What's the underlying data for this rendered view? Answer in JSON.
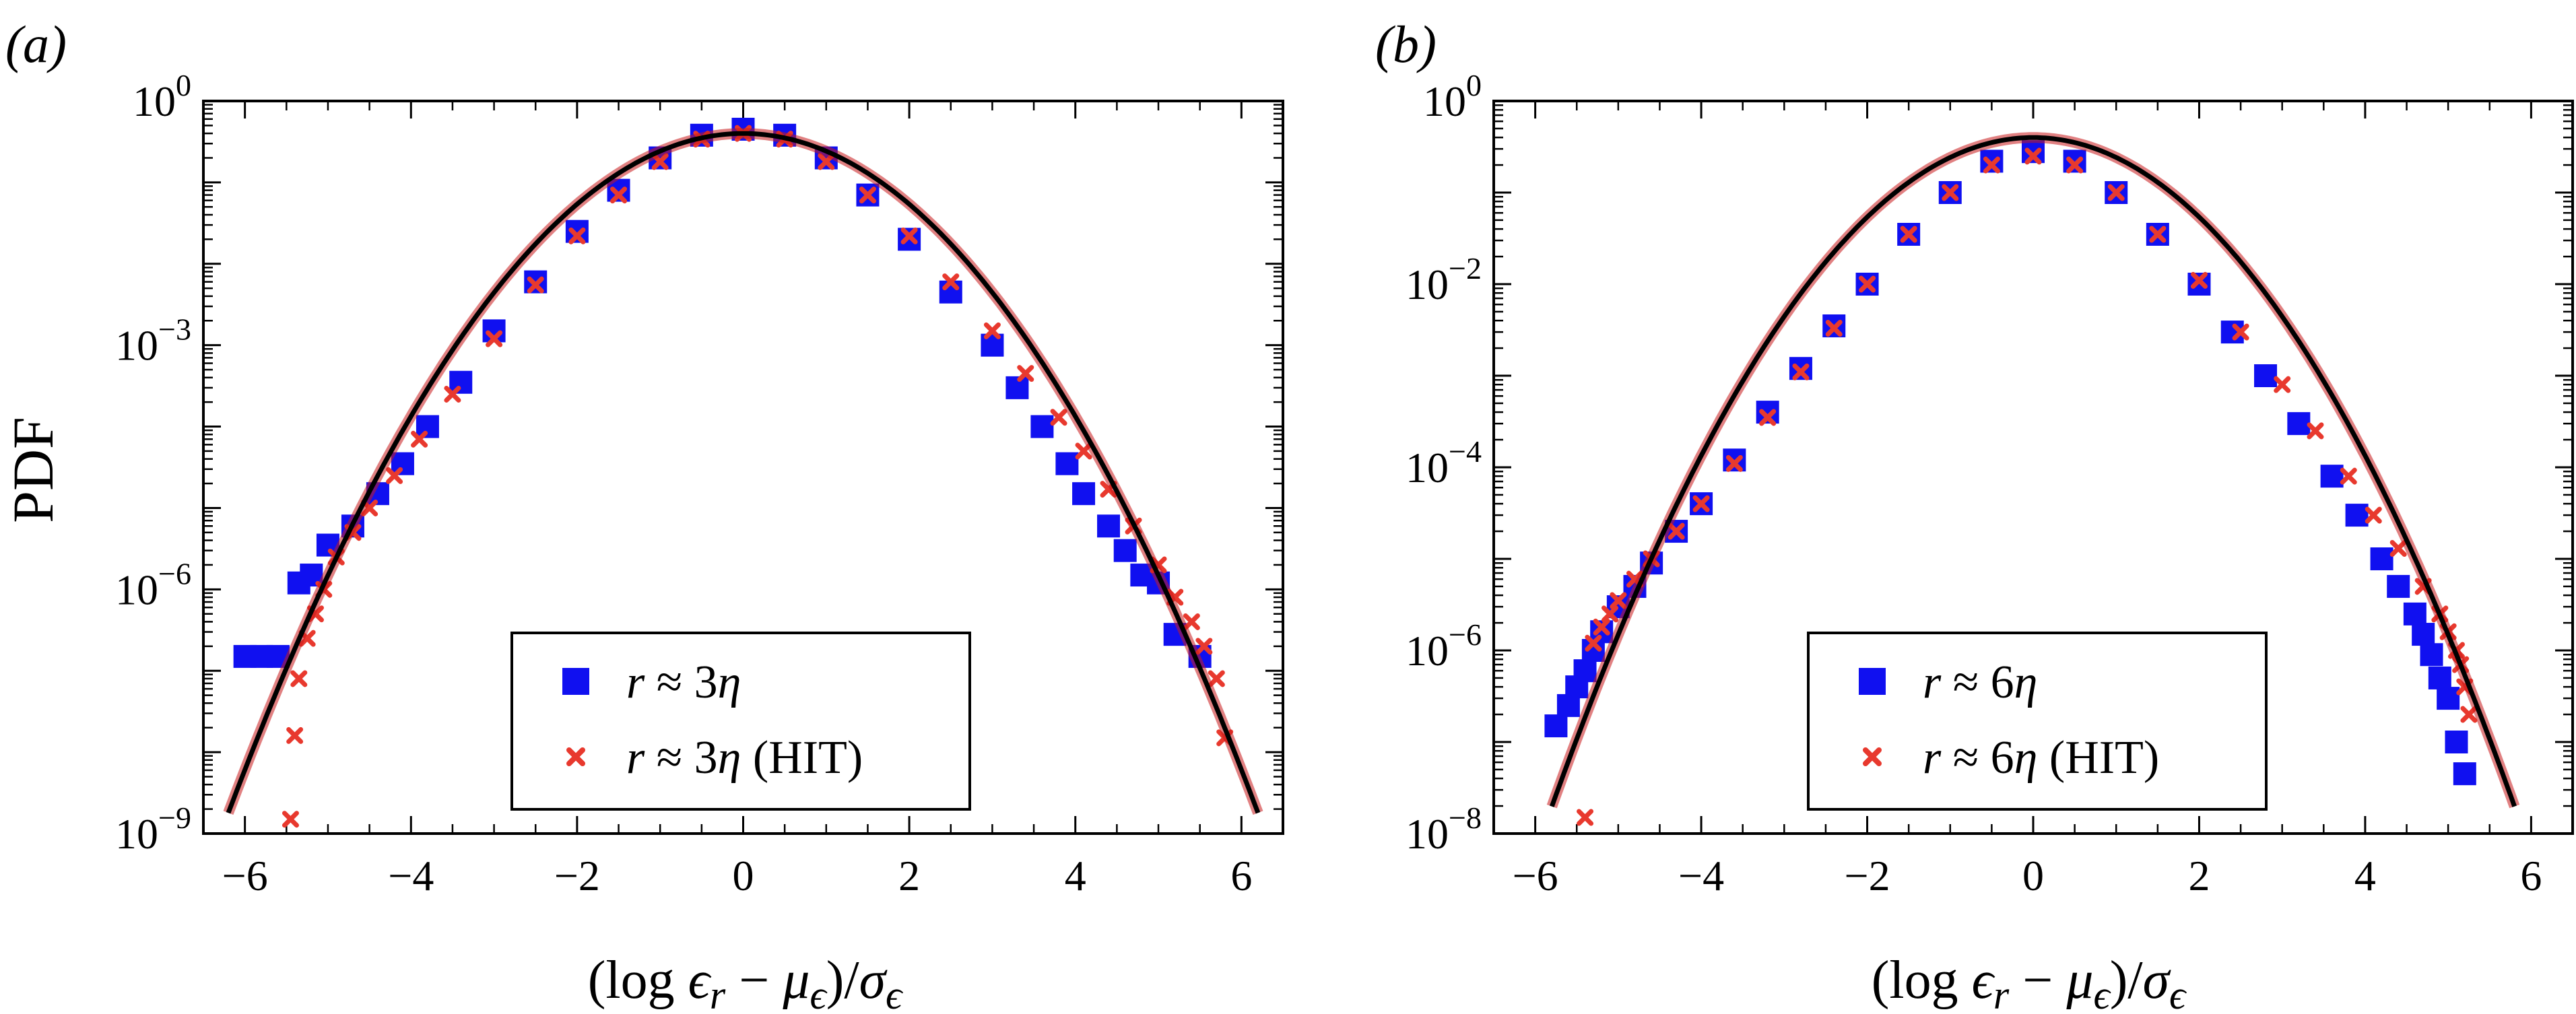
{
  "figure": {
    "ylabel": "PDF",
    "xlabel": {
      "p1": "(log ",
      "eps": "ϵ",
      "r": "r",
      "p2": " − ",
      "mu": "μ",
      "e1": "ϵ",
      "p3": ")/",
      "sigma": "σ",
      "e2": "ϵ"
    }
  },
  "colors": {
    "blue": "#1010f0",
    "red": "#e8392e",
    "curve": "#000000",
    "fit_underlay": "#c8191c"
  },
  "chart_data": [
    {
      "panel_label": "(a)",
      "type": "scatter",
      "yscale": "log",
      "xlim": [
        -6.5,
        6.5
      ],
      "ylim": [
        1e-09,
        1
      ],
      "xticks": [
        -6,
        -4,
        -2,
        0,
        2,
        4,
        6
      ],
      "xtick_labels": [
        "−6",
        "−4",
        "−2",
        "0",
        "2",
        "4",
        "6"
      ],
      "yticks": [
        {
          "value": 1e-09,
          "base": "10",
          "exp": "−9"
        },
        {
          "value": 1e-06,
          "base": "10",
          "exp": "−6"
        },
        {
          "value": 0.001,
          "base": "10",
          "exp": "−3"
        },
        {
          "value": 1,
          "base": "10",
          "exp": "0"
        }
      ],
      "legend": [
        {
          "var": "r",
          "rel": " ≈ 3",
          "eta": "η",
          "suffix": "",
          "marker": "square",
          "color": "#1010f0"
        },
        {
          "var": "r",
          "rel": " ≈ 3",
          "eta": "η",
          "suffix": " (HIT)",
          "marker": "x",
          "color": "#e8392e"
        }
      ],
      "gaussian_fit": {
        "xmin": -6.2,
        "xmax": 6.2
      },
      "series": [
        {
          "name": "r ≈ 3η",
          "marker": "square",
          "color": "#1010f0",
          "points": [
            [
              -6.0,
              1.5e-07
            ],
            [
              -5.8,
              1.5e-07
            ],
            [
              -5.6,
              1.5e-07
            ],
            [
              -5.35,
              1.2e-06
            ],
            [
              -5.2,
              1.5e-06
            ],
            [
              -5.0,
              3.5e-06
            ],
            [
              -4.7,
              6e-06
            ],
            [
              -4.4,
              1.5e-05
            ],
            [
              -4.1,
              3.5e-05
            ],
            [
              -3.8,
              0.0001
            ],
            [
              -3.4,
              0.00035
            ],
            [
              -3.0,
              0.0015
            ],
            [
              -2.5,
              0.006
            ],
            [
              -2.0,
              0.025
            ],
            [
              -1.5,
              0.08
            ],
            [
              -1.0,
              0.2
            ],
            [
              -0.5,
              0.38
            ],
            [
              0.0,
              0.45
            ],
            [
              0.5,
              0.38
            ],
            [
              1.0,
              0.2
            ],
            [
              1.5,
              0.07
            ],
            [
              2.0,
              0.02
            ],
            [
              2.5,
              0.0045
            ],
            [
              3.0,
              0.001
            ],
            [
              3.3,
              0.0003
            ],
            [
              3.6,
              0.0001
            ],
            [
              3.9,
              3.5e-05
            ],
            [
              4.1,
              1.5e-05
            ],
            [
              4.4,
              6e-06
            ],
            [
              4.6,
              3e-06
            ],
            [
              4.8,
              1.5e-06
            ],
            [
              5.0,
              1.2e-06
            ],
            [
              5.2,
              2.8e-07
            ],
            [
              5.5,
              1.5e-07
            ]
          ]
        },
        {
          "name": "r ≈ 3η (HIT)",
          "marker": "x",
          "color": "#e8392e",
          "points": [
            [
              -5.45,
              1.5e-09
            ],
            [
              -5.4,
              1.6e-08
            ],
            [
              -5.35,
              8e-08
            ],
            [
              -5.25,
              2.5e-07
            ],
            [
              -5.15,
              5e-07
            ],
            [
              -5.05,
              1e-06
            ],
            [
              -4.9,
              2.5e-06
            ],
            [
              -4.7,
              5e-06
            ],
            [
              -4.5,
              1e-05
            ],
            [
              -4.2,
              2.5e-05
            ],
            [
              -3.9,
              7e-05
            ],
            [
              -3.5,
              0.00025
            ],
            [
              -3.0,
              0.0012
            ],
            [
              -2.5,
              0.0055
            ],
            [
              -2.0,
              0.022
            ],
            [
              -1.5,
              0.07
            ],
            [
              -1.0,
              0.18
            ],
            [
              -0.5,
              0.34
            ],
            [
              0.0,
              0.4
            ],
            [
              0.5,
              0.34
            ],
            [
              1.0,
              0.18
            ],
            [
              1.5,
              0.07
            ],
            [
              2.0,
              0.022
            ],
            [
              2.5,
              0.006
            ],
            [
              3.0,
              0.0015
            ],
            [
              3.4,
              0.00045
            ],
            [
              3.8,
              0.00013
            ],
            [
              4.1,
              5e-05
            ],
            [
              4.4,
              1.7e-05
            ],
            [
              4.7,
              6e-06
            ],
            [
              5.0,
              2e-06
            ],
            [
              5.2,
              8e-07
            ],
            [
              5.4,
              4e-07
            ],
            [
              5.55,
              2e-07
            ],
            [
              5.7,
              8e-08
            ],
            [
              5.8,
              1.5e-08
            ]
          ]
        }
      ]
    },
    {
      "panel_label": "(b)",
      "type": "scatter",
      "yscale": "log",
      "xlim": [
        -6.5,
        6.5
      ],
      "ylim": [
        1e-08,
        1
      ],
      "xticks": [
        -6,
        -4,
        -2,
        0,
        2,
        4,
        6
      ],
      "xtick_labels": [
        "−6",
        "−4",
        "−2",
        "0",
        "2",
        "4",
        "6"
      ],
      "yticks": [
        {
          "value": 1e-08,
          "base": "10",
          "exp": "−8"
        },
        {
          "value": 1e-06,
          "base": "10",
          "exp": "−6"
        },
        {
          "value": 0.0001,
          "base": "10",
          "exp": "−4"
        },
        {
          "value": 0.01,
          "base": "10",
          "exp": "−2"
        },
        {
          "value": 1,
          "base": "10",
          "exp": "0"
        }
      ],
      "legend": [
        {
          "var": "r",
          "rel": " ≈ 6",
          "eta": "η",
          "suffix": "",
          "marker": "square",
          "color": "#1010f0"
        },
        {
          "var": "r",
          "rel": " ≈ 6",
          "eta": "η",
          "suffix": " (HIT)",
          "marker": "x",
          "color": "#e8392e"
        }
      ],
      "gaussian_fit": {
        "xmin": -5.8,
        "xmax": 5.8
      },
      "series": [
        {
          "name": "r ≈ 6η",
          "marker": "square",
          "color": "#1010f0",
          "points": [
            [
              -5.75,
              1.5e-07
            ],
            [
              -5.6,
              2.5e-07
            ],
            [
              -5.5,
              4e-07
            ],
            [
              -5.4,
              6e-07
            ],
            [
              -5.3,
              1e-06
            ],
            [
              -5.2,
              1.6e-06
            ],
            [
              -5.0,
              3e-06
            ],
            [
              -4.8,
              5e-06
            ],
            [
              -4.6,
              9e-06
            ],
            [
              -4.3,
              2e-05
            ],
            [
              -4.0,
              4e-05
            ],
            [
              -3.6,
              0.00012
            ],
            [
              -3.2,
              0.0004
            ],
            [
              -2.8,
              0.0012
            ],
            [
              -2.4,
              0.0035
            ],
            [
              -2.0,
              0.01
            ],
            [
              -1.5,
              0.035
            ],
            [
              -1.0,
              0.1
            ],
            [
              -0.5,
              0.22
            ],
            [
              0.0,
              0.28
            ],
            [
              0.5,
              0.22
            ],
            [
              1.0,
              0.1
            ],
            [
              1.5,
              0.035
            ],
            [
              2.0,
              0.01
            ],
            [
              2.4,
              0.003
            ],
            [
              2.8,
              0.001
            ],
            [
              3.2,
              0.0003
            ],
            [
              3.6,
              8e-05
            ],
            [
              3.9,
              3e-05
            ],
            [
              4.2,
              1e-05
            ],
            [
              4.4,
              5e-06
            ],
            [
              4.6,
              2.5e-06
            ],
            [
              4.7,
              1.5e-06
            ],
            [
              4.8,
              9e-07
            ],
            [
              4.9,
              5e-07
            ],
            [
              5.0,
              3e-07
            ],
            [
              5.1,
              1e-07
            ],
            [
              5.2,
              4.5e-08
            ]
          ]
        },
        {
          "name": "r ≈ 6η (HIT)",
          "marker": "x",
          "color": "#e8392e",
          "points": [
            [
              -5.4,
              1.5e-08
            ],
            [
              -5.3,
              1.2e-06
            ],
            [
              -5.2,
              1.8e-06
            ],
            [
              -5.1,
              2.5e-06
            ],
            [
              -5.0,
              3.5e-06
            ],
            [
              -4.8,
              6e-06
            ],
            [
              -4.6,
              1e-05
            ],
            [
              -4.3,
              2e-05
            ],
            [
              -4.0,
              4e-05
            ],
            [
              -3.6,
              0.00011
            ],
            [
              -3.2,
              0.00035
            ],
            [
              -2.8,
              0.0011
            ],
            [
              -2.4,
              0.0033
            ],
            [
              -2.0,
              0.01
            ],
            [
              -1.5,
              0.035
            ],
            [
              -1.0,
              0.1
            ],
            [
              -0.5,
              0.2
            ],
            [
              0.0,
              0.25
            ],
            [
              0.5,
              0.2
            ],
            [
              1.0,
              0.1
            ],
            [
              1.5,
              0.035
            ],
            [
              2.0,
              0.011
            ],
            [
              2.5,
              0.003
            ],
            [
              3.0,
              0.0008
            ],
            [
              3.4,
              0.00025
            ],
            [
              3.8,
              8e-05
            ],
            [
              4.1,
              3e-05
            ],
            [
              4.4,
              1.3e-05
            ],
            [
              4.7,
              5e-06
            ],
            [
              4.9,
              2.5e-06
            ],
            [
              5.0,
              1.6e-06
            ],
            [
              5.1,
              1e-06
            ],
            [
              5.15,
              7e-07
            ],
            [
              5.2,
              4e-07
            ],
            [
              5.25,
              2e-07
            ]
          ]
        }
      ]
    }
  ]
}
